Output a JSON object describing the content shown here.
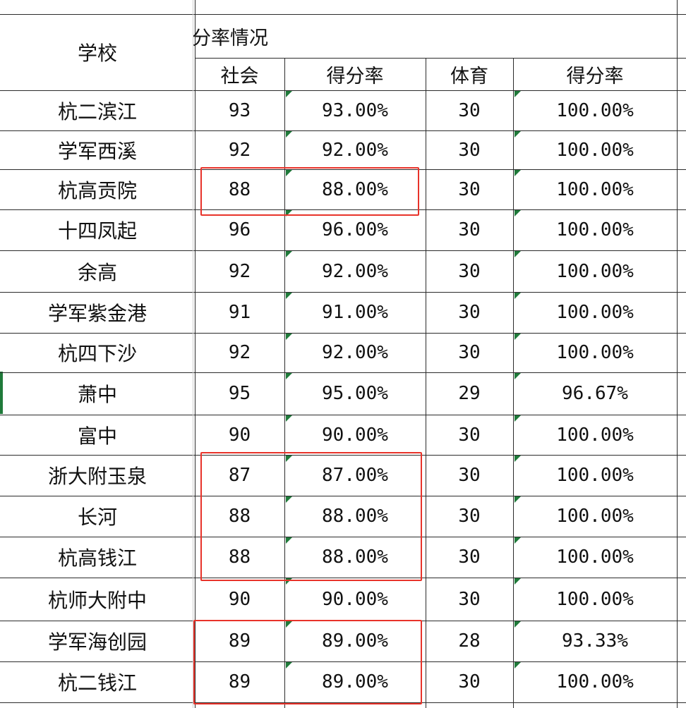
{
  "header": {
    "school_label": "学校",
    "group_label": "分率情况",
    "columns": [
      "社会",
      "得分率",
      "体育",
      "得分率"
    ]
  },
  "rows": [
    {
      "school": "杭二滨江",
      "social": "93",
      "social_rate": "93.00%",
      "pe": "30",
      "pe_rate": "100.00%"
    },
    {
      "school": "学军西溪",
      "social": "92",
      "social_rate": "92.00%",
      "pe": "30",
      "pe_rate": "100.00%"
    },
    {
      "school": "杭高贡院",
      "social": "88",
      "social_rate": "88.00%",
      "pe": "30",
      "pe_rate": "100.00%"
    },
    {
      "school": "十四凤起",
      "social": "96",
      "social_rate": "96.00%",
      "pe": "30",
      "pe_rate": "100.00%"
    },
    {
      "school": "余高",
      "social": "92",
      "social_rate": "92.00%",
      "pe": "30",
      "pe_rate": "100.00%"
    },
    {
      "school": "学军紫金港",
      "social": "91",
      "social_rate": "91.00%",
      "pe": "30",
      "pe_rate": "100.00%"
    },
    {
      "school": "杭四下沙",
      "social": "92",
      "social_rate": "92.00%",
      "pe": "30",
      "pe_rate": "100.00%"
    },
    {
      "school": "萧中",
      "social": "95",
      "social_rate": "95.00%",
      "pe": "29",
      "pe_rate": "96.67%"
    },
    {
      "school": "富中",
      "social": "90",
      "social_rate": "90.00%",
      "pe": "30",
      "pe_rate": "100.00%"
    },
    {
      "school": "浙大附玉泉",
      "social": "87",
      "social_rate": "87.00%",
      "pe": "30",
      "pe_rate": "100.00%"
    },
    {
      "school": "长河",
      "social": "88",
      "social_rate": "88.00%",
      "pe": "30",
      "pe_rate": "100.00%"
    },
    {
      "school": "杭高钱江",
      "social": "88",
      "social_rate": "88.00%",
      "pe": "30",
      "pe_rate": "100.00%"
    },
    {
      "school": "杭师大附中",
      "social": "90",
      "social_rate": "90.00%",
      "pe": "30",
      "pe_rate": "100.00%"
    },
    {
      "school": "学军海创园",
      "social": "89",
      "social_rate": "89.00%",
      "pe": "28",
      "pe_rate": "93.33%"
    },
    {
      "school": "杭二钱江",
      "social": "89",
      "social_rate": "89.00%",
      "pe": "30",
      "pe_rate": "100.00%"
    }
  ],
  "highlight_color": "#e8332a",
  "indicator_color": "#1f7a3a"
}
